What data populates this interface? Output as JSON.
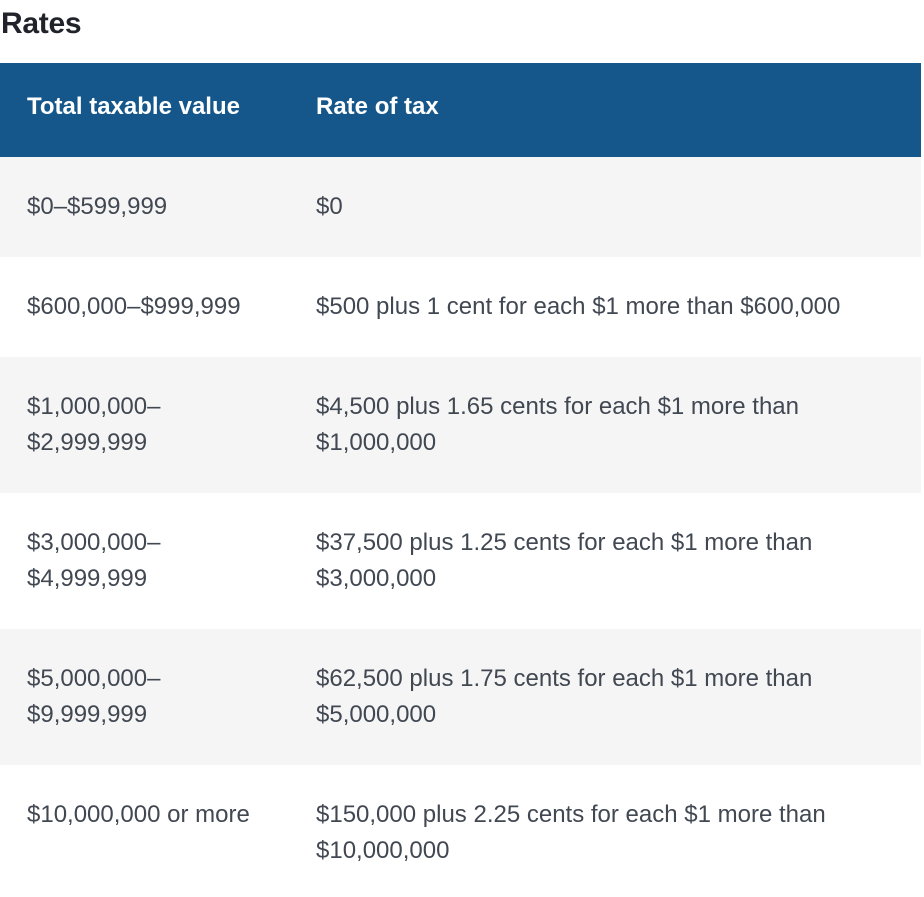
{
  "page": {
    "title": "Rates"
  },
  "table": {
    "columns": [
      {
        "label": "Total taxable value"
      },
      {
        "label": "Rate of tax"
      }
    ],
    "rows": [
      {
        "total_taxable_value": "$0–$599,999",
        "rate_of_tax": "$0"
      },
      {
        "total_taxable_value": "$600,000–$999,999",
        "rate_of_tax": "$500 plus 1 cent for each $1 more than $600,000"
      },
      {
        "total_taxable_value": "$1,000,000–$2,999,999",
        "rate_of_tax": "$4,500 plus 1.65 cents for each $1 more than $1,000,000"
      },
      {
        "total_taxable_value": "$3,000,000–$4,999,999",
        "rate_of_tax": "$37,500 plus 1.25 cents for each $1 more than $3,000,000"
      },
      {
        "total_taxable_value": "$5,000,000–$9,999,999",
        "rate_of_tax": "$62,500 plus 1.75 cents for each $1 more than $5,000,000"
      },
      {
        "total_taxable_value": "$10,000,000 or more",
        "rate_of_tax": "$150,000 plus 2.25 cents for each $1 more than $10,000,000"
      }
    ],
    "colors": {
      "header_bg": "#15578b",
      "header_text": "#ffffff",
      "row_alt_bg": "#f5f5f5",
      "row_bg": "#ffffff",
      "body_text": "#414852",
      "title_text": "#20242a"
    }
  }
}
